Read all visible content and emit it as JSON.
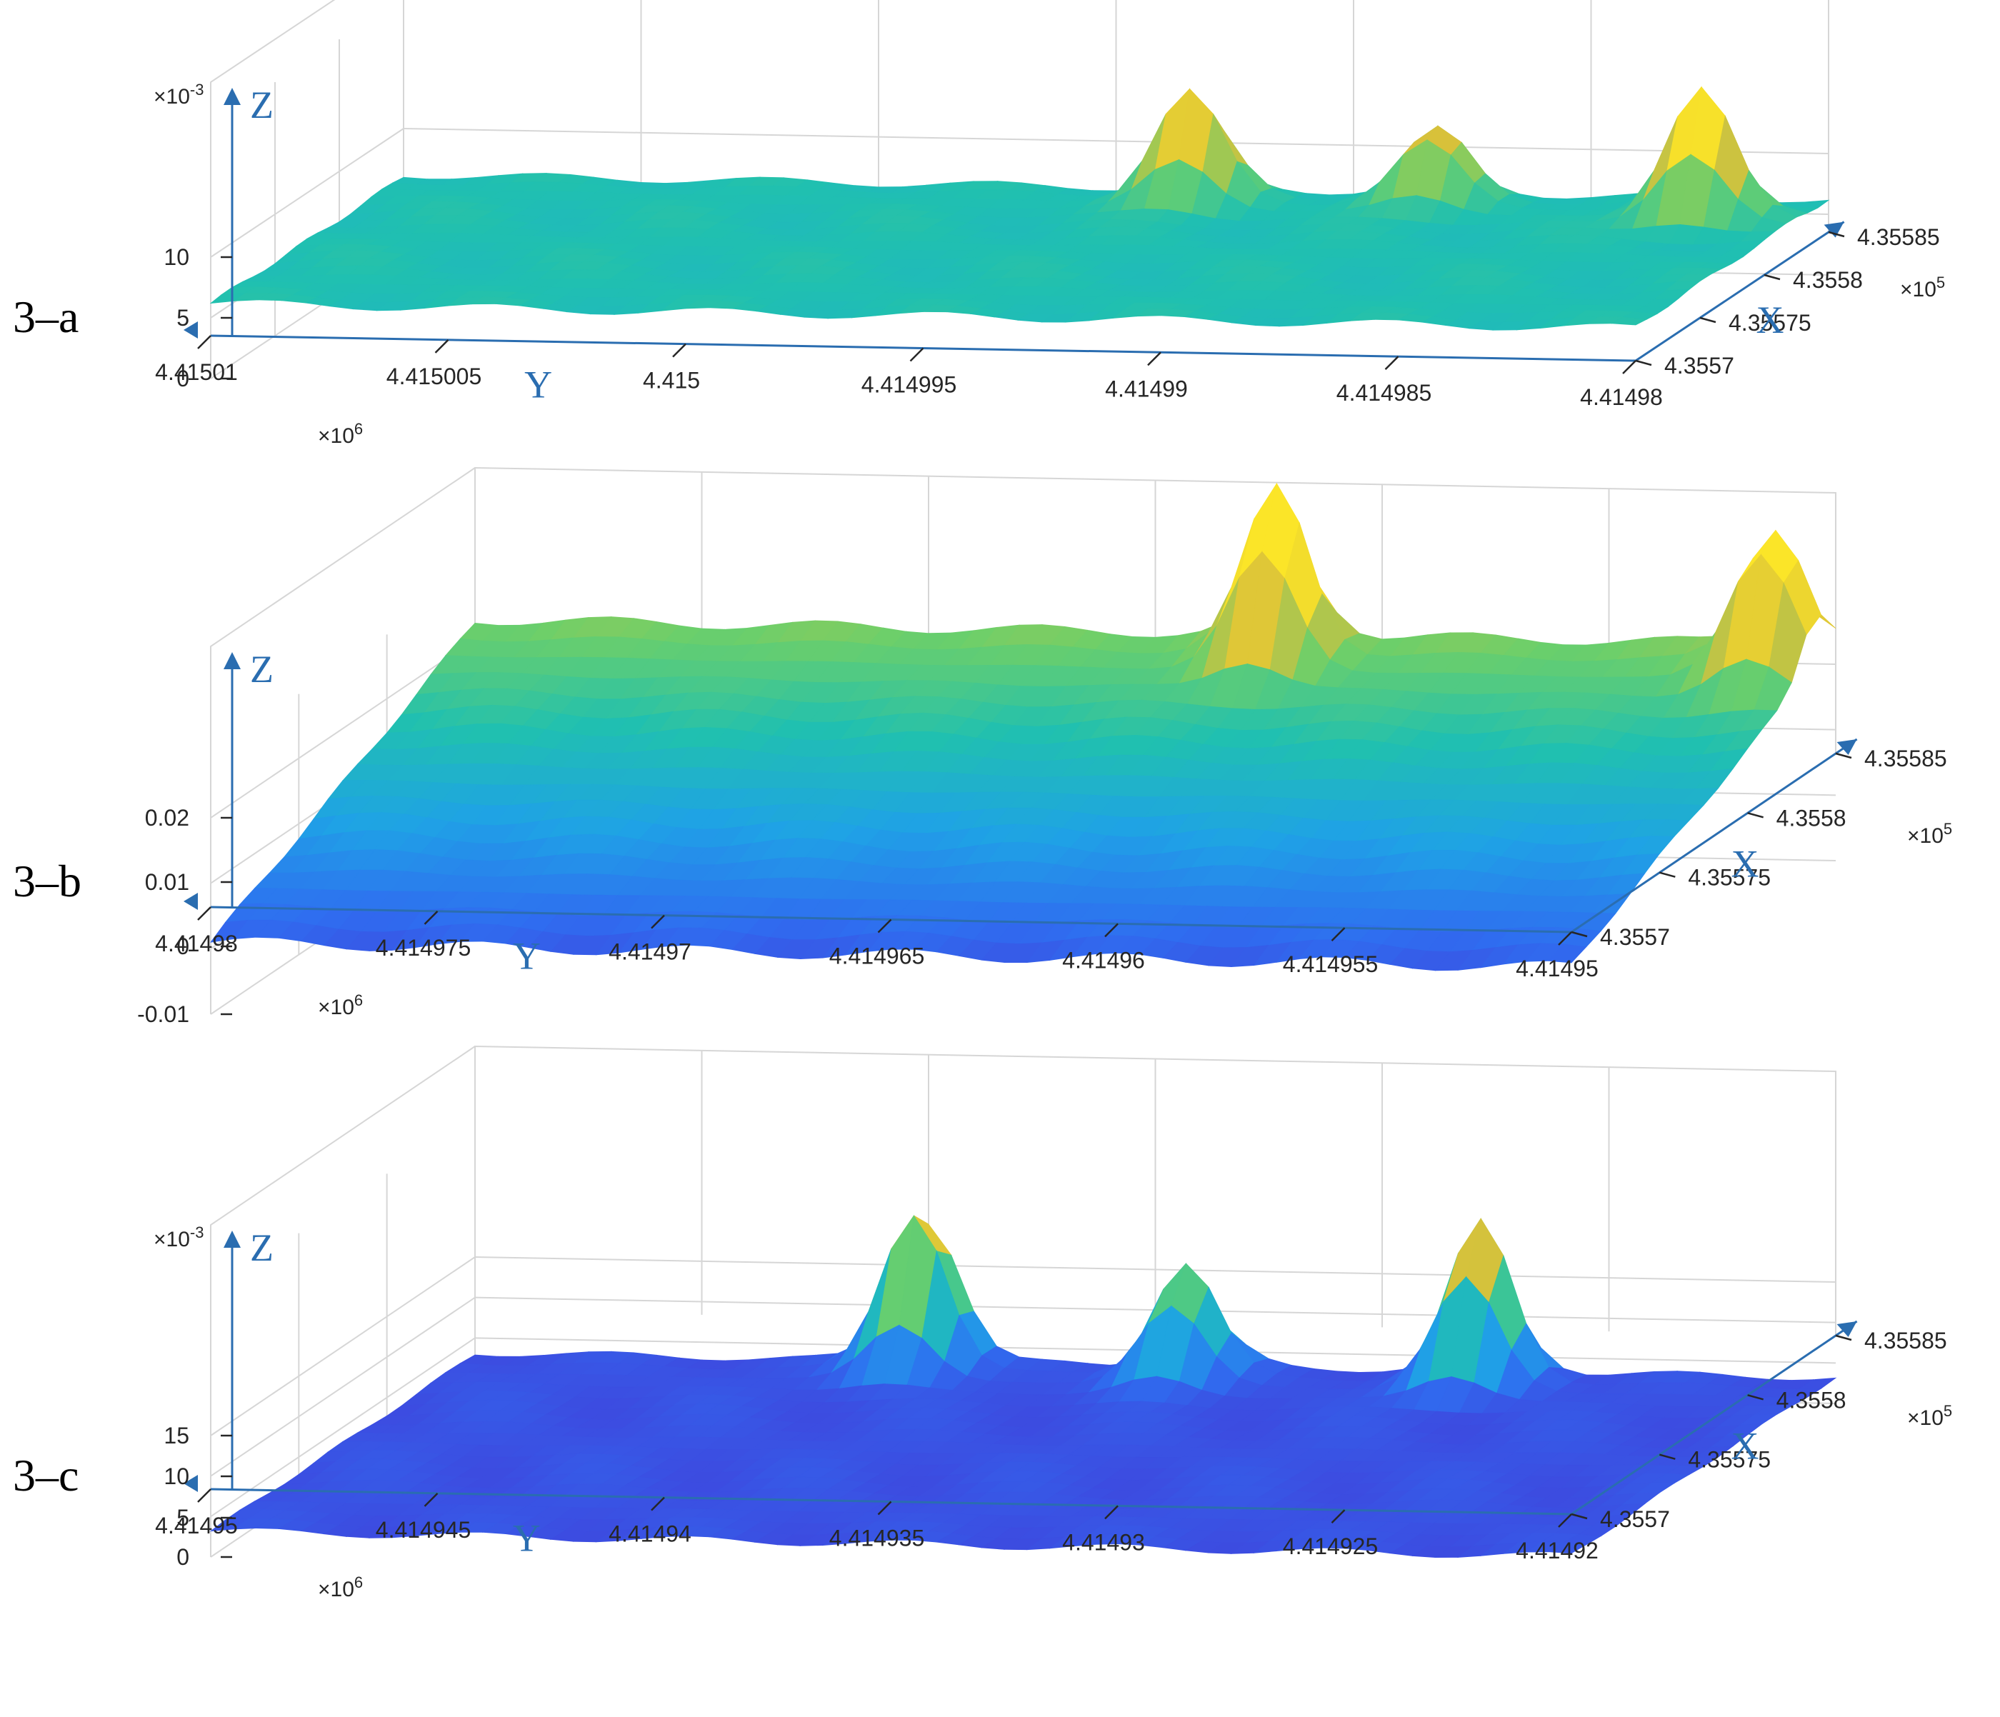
{
  "colors": {
    "axis_arrow": "#2a6db0",
    "grid": "#d6d6d6",
    "text": "#262626",
    "colormap": [
      "#3e1a9e",
      "#4536d6",
      "#2f6df0",
      "#1fa2e6",
      "#20c0b0",
      "#6ccf6a",
      "#d9c13a",
      "#fbe528"
    ]
  },
  "chart_data": [
    {
      "type": "surface",
      "panel_label": "3–a",
      "axis_names": {
        "x": "X",
        "y": "Y",
        "z": "Z"
      },
      "x_ticks": [
        "4.3557",
        "4.35575",
        "4.3558",
        "4.35585"
      ],
      "x_tick_values": [
        435570,
        435575,
        435580,
        435585
      ],
      "x_multiplier": {
        "base": "×10",
        "exp": "5"
      },
      "y_ticks": [
        "4.41501",
        "4.415005",
        "4.415",
        "4.414995",
        "4.41499",
        "4.414985",
        "4.41498"
      ],
      "y_tick_values": [
        4415010,
        4415005,
        4415000,
        4414995,
        4414990,
        4414985,
        4414980
      ],
      "y_multiplier": {
        "base": "×10",
        "exp": "6"
      },
      "z_ticks": [
        "0",
        "5",
        "10"
      ],
      "z_tick_values": [
        0,
        0.005,
        0.01
      ],
      "z_multiplier": {
        "base": "×10",
        "exp": "-3"
      },
      "z_range": [
        -0.004,
        0.014
      ],
      "base_level": 0.0062,
      "peaks": [
        {
          "x": 435583.5,
          "y": 4414993.0,
          "z": 0.0158
        },
        {
          "x": 435583.8,
          "y": 4414988.0,
          "z": 0.0128
        },
        {
          "x": 435582.5,
          "y": 4414982.0,
          "z": 0.0172
        }
      ]
    },
    {
      "type": "surface",
      "panel_label": "3–b",
      "axis_names": {
        "x": "X",
        "y": "Y",
        "z": "Z"
      },
      "x_ticks": [
        "4.3557",
        "4.35575",
        "4.3558",
        "4.35585"
      ],
      "x_tick_values": [
        435570,
        435575,
        435580,
        435585
      ],
      "x_multiplier": {
        "base": "×10",
        "exp": "5"
      },
      "y_ticks": [
        "4.41498",
        "4.414975",
        "4.41497",
        "4.414965",
        "4.41496",
        "4.414955",
        "4.41495"
      ],
      "y_tick_values": [
        4414980,
        4414975,
        4414970,
        4414965,
        4414960,
        4414955,
        4414950
      ],
      "y_multiplier": {
        "base": "×10",
        "exp": "6"
      },
      "z_ticks": [
        "-0.01",
        "0",
        "0.01",
        "0.02"
      ],
      "z_tick_values": [
        -0.01,
        0,
        0.01,
        0.02
      ],
      "z_range": [
        -0.01,
        0.035
      ],
      "base_level": 0.012,
      "peaks": [
        {
          "x": 435584.0,
          "y": 4414962.0,
          "z": 0.038
        },
        {
          "x": 435583.8,
          "y": 4414951.0,
          "z": 0.035
        }
      ]
    },
    {
      "type": "surface",
      "panel_label": "3–c",
      "axis_names": {
        "x": "X",
        "y": "Y",
        "z": "Z"
      },
      "x_ticks": [
        "4.3557",
        "4.35575",
        "4.3558",
        "4.35585"
      ],
      "x_tick_values": [
        435570,
        435575,
        435580,
        435585
      ],
      "x_multiplier": {
        "base": "×10",
        "exp": "5"
      },
      "y_ticks": [
        "4.41495",
        "4.414945",
        "4.41494",
        "4.414935",
        "4.41493",
        "4.414925",
        "4.41492"
      ],
      "y_tick_values": [
        4414950,
        4414945,
        4414940,
        4414935,
        4414930,
        4414925,
        4414920
      ],
      "y_multiplier": {
        "base": "×10",
        "exp": "6"
      },
      "z_ticks": [
        "0",
        "5",
        "10",
        "15"
      ],
      "z_tick_values": [
        0,
        0.005,
        0.01,
        0.015
      ],
      "z_multiplier": {
        "base": "×10",
        "exp": "-3"
      },
      "z_range": [
        -0.002,
        0.022
      ],
      "base_level": 0.0032,
      "peaks": [
        {
          "x": 435584.5,
          "y": 4414940.0,
          "z": 0.0245
        },
        {
          "x": 435584.0,
          "y": 4414934.0,
          "z": 0.0175
        },
        {
          "x": 435584.0,
          "y": 4414927.5,
          "z": 0.0235
        }
      ]
    }
  ]
}
